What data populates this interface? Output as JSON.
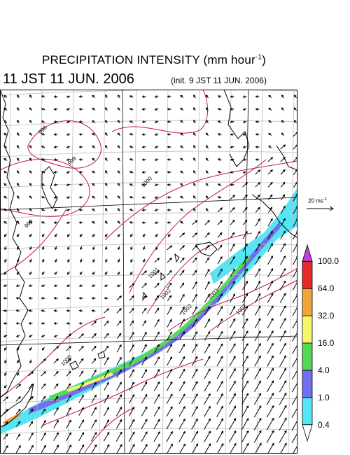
{
  "title": {
    "main": "PRECIPITATION INTENSITY (mm hour",
    "exponent": "-1",
    "close": ")"
  },
  "valid_time": "11 JST 11 JUN. 2006",
  "init_time": "(init. 9 JST 11 JUN. 2006)",
  "wind_reference": {
    "label": "20 ms",
    "exponent": "-1",
    "speed": 20
  },
  "colorbar": {
    "levels": [
      "0.4",
      "1.0",
      "4.0",
      "16.0",
      "32.0",
      "64.0",
      "100.0"
    ],
    "colors": [
      "#55e6f5",
      "#6f6ff0",
      "#55d855",
      "#f7f76a",
      "#f2a33c",
      "#e52a2a",
      "#c43fd9"
    ]
  },
  "isobar_labels": [
    "998",
    "999",
    "999",
    "1000",
    "1001",
    "1002",
    "1002",
    "1003",
    "1002",
    "1000"
  ],
  "colors": {
    "coast": "#000000",
    "isobar": "#c4145c",
    "graticule": "#bbbbbb",
    "grid": "#000000"
  }
}
